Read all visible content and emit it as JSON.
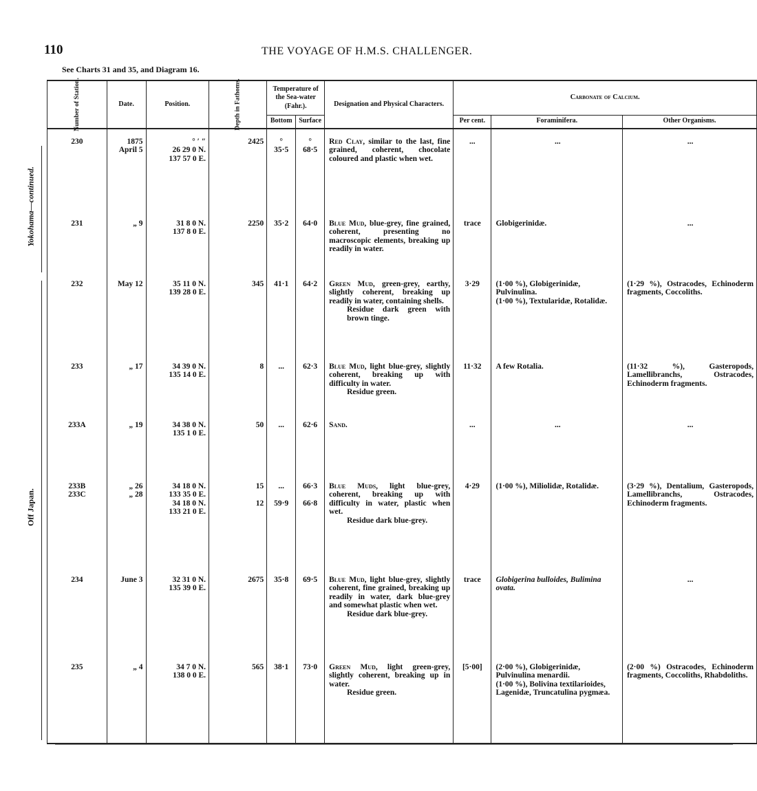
{
  "page_number": "110",
  "running_head": "THE VOYAGE OF H.M.S. CHALLENGER.",
  "see_charts": "See Charts 31 and 35, and Diagram 16.",
  "side_labels": {
    "yokohama": "Yokohama—continued.",
    "japan": "Off Japan."
  },
  "headers": {
    "station": "Number of Station.",
    "date": "Date.",
    "position": "Position.",
    "depth": "Depth in Fathoms.",
    "temperature": "Temperature of the Sea-water (Fahr.).",
    "bottom": "Bottom",
    "surface": "Surface",
    "designation": "Designation and Physical Characters.",
    "carbonate": "Carbonate of Calcium.",
    "per_cent": "Per cent.",
    "foraminifera": "Foraminifera.",
    "other": "Other Organisms."
  },
  "rows": [
    {
      "station": "230",
      "date": "1875\nApril 5",
      "position": "°   ′   ″\n26 29  0 N.\n137 57  0 E.",
      "depth": "2425",
      "bottom": "°\n35·5",
      "surface": "°\n68·5",
      "term": "Red Clay,",
      "desc": "similar to the last, fine grained, coherent, chocolate coloured and plastic when wet.",
      "residue": "",
      "per_cent": "...",
      "foram": "...",
      "other": "..."
    },
    {
      "station": "231",
      "date": "„   9",
      "position": "31  8  0 N.\n137  8  0 E.",
      "depth": "2250",
      "bottom": "35·2",
      "surface": "64·0",
      "term": "Blue Mud,",
      "desc": "blue-grey, fine grained, coherent, presenting no macroscopic elements, breaking up readily in water.",
      "residue": "",
      "per_cent": "trace",
      "foram": "Globigerinidæ.",
      "other": "..."
    },
    {
      "station": "232",
      "date": "May 12",
      "position": "35 11  0 N.\n139 28  0 E.",
      "depth": "345",
      "bottom": "41·1",
      "surface": "64·2",
      "term": "Green Mud,",
      "desc": "green-grey, earthy, slightly coherent, breaking up readily in water, containing shells.",
      "residue": "Residue dark green with brown tinge.",
      "per_cent": "3·29",
      "foram": "(1·00 %), Globigerinidæ, Pulvinulina.\n(1·00 %), Textularidæ, Rotalidæ.",
      "other": "(1·29 %), Ostracodes, Echinoderm fragments, Coccoliths."
    },
    {
      "station": "233",
      "date": "„  17",
      "position": "34 39  0 N.\n135 14  0 E.",
      "depth": "8",
      "bottom": "...",
      "surface": "62·3",
      "term": "Blue Mud,",
      "desc": "light blue-grey, slightly coherent, breaking up with difficulty in water.",
      "residue": "Residue green.",
      "per_cent": "11·32",
      "foram": "A few Rotalia.",
      "other": "(11·32 %), Gasteropods, Lamellibranchs, Ostracodes, Echinoderm fragments."
    },
    {
      "station": "233A",
      "date": "„  19",
      "position": "34 38  0 N.\n135  1  0 E.",
      "depth": "50",
      "bottom": "...",
      "surface": "62·6",
      "term": "Sand.",
      "desc": "",
      "residue": "",
      "per_cent": "...",
      "foram": "...",
      "other": "..."
    },
    {
      "station": "233B\n233C",
      "date": "„  26\n„  28",
      "position": "34 18  0 N.\n133 35  0 E.\n34 18  0 N.\n133 21  0 E.",
      "depth": "15\n\n12",
      "bottom": "...\n\n59·9",
      "surface": "66·3\n\n66·8",
      "term": "Blue Muds,",
      "desc": "light blue-grey, coherent, breaking up with difficulty in water, plastic when wet.",
      "residue": "Residue dark blue-grey.",
      "per_cent": "4·29",
      "foram": "(1·00 %), Miliolidæ, Rotalidæ.",
      "other": "(3·29 %), Dentalium, Gasteropods, Lamellibranchs, Ostracodes, Echinoderm fragments."
    },
    {
      "station": "234",
      "date": "June 3",
      "position": "32 31  0 N.\n135 39  0 E.",
      "depth": "2675",
      "bottom": "35·8",
      "surface": "69·5",
      "term": "Blue Mud,",
      "desc": "light blue-grey, slightly coherent, fine grained, breaking up readily in water, dark blue-grey and somewhat plastic when wet.",
      "residue": "Residue dark blue-grey.",
      "per_cent": "trace",
      "foram": "Globigerina bulloides, Bulimina ovata.",
      "other": "..."
    },
    {
      "station": "235",
      "date": "„   4",
      "position": "34  7  0 N.\n138  0  0 E.",
      "depth": "565",
      "bottom": "38·1",
      "surface": "73·0",
      "term": "Green Mud,",
      "desc": "light green-grey, slightly coherent, breaking up in water.",
      "residue": "Residue green.",
      "per_cent": "[5·00]",
      "foram": "(2·00 %), Globigerinidæ, Pulvinulina menardii.\n(1·00 %), Bolivina textilarioides, Lagenidæ, Truncatulina pygmæa.",
      "other": "(2·00 %) Ostracodes, Echinoderm fragments, Coccoliths, Rhabdoliths."
    }
  ]
}
